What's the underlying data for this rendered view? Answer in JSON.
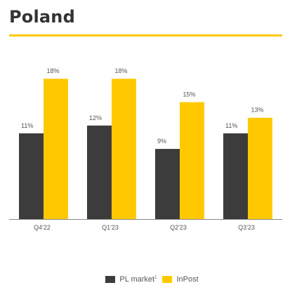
{
  "page_title": "Poland",
  "colors": {
    "accent": "#ffc800",
    "pl_market": "#3c3c3c",
    "inpost": "#ffc800"
  },
  "chart_data": {
    "type": "bar",
    "categories": [
      "Q4'22",
      "Q1'23",
      "Q2'23",
      "Q3'23"
    ],
    "series": [
      {
        "name": "PL market",
        "values": [
          11,
          12,
          9,
          11
        ],
        "labels": [
          "11%",
          "12%",
          "9%",
          "11%"
        ]
      },
      {
        "name": "InPost",
        "values": [
          18,
          18,
          15,
          13
        ],
        "labels": [
          "18%",
          "18%",
          "15%",
          "13%"
        ]
      }
    ],
    "grid": false,
    "legend": "bottom-center"
  },
  "legend": {
    "items": [
      {
        "label": "PL market",
        "sup": "1",
        "color": "#3c3c3c"
      },
      {
        "label": "InPost",
        "sup": "",
        "color": "#ffc800"
      }
    ]
  }
}
